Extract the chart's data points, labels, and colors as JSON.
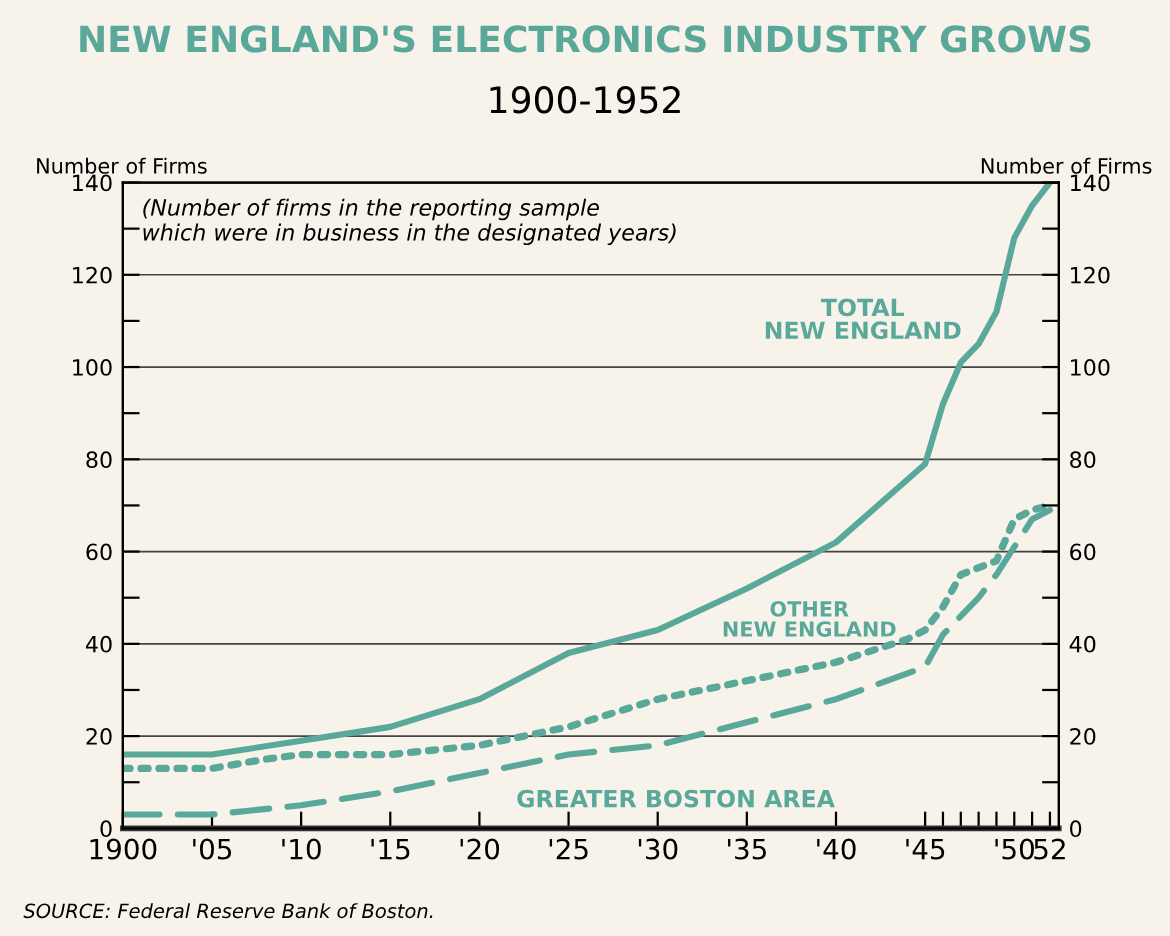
{
  "chart_data": {
    "type": "line",
    "title": "NEW ENGLAND'S ELECTRONICS INDUSTRY GROWS",
    "subtitle": "1900-1952",
    "ylabel": "Number of Firms",
    "y2label": "Number of Firms",
    "annotations": [
      "(Number of firms in the reporting sample\nwhich were in business in the designated years)",
      "SOURCE: Federal Reserve Bank of Boston."
    ],
    "xlim": [
      1900,
      1952.5
    ],
    "xticks": [
      {
        "value": 1900,
        "label": "1900"
      },
      {
        "value": 1905,
        "label": "'05"
      },
      {
        "value": 1910,
        "label": "'10"
      },
      {
        "value": 1915,
        "label": "'15"
      },
      {
        "value": 1920,
        "label": "'20"
      },
      {
        "value": 1925,
        "label": "'25"
      },
      {
        "value": 1930,
        "label": "'30"
      },
      {
        "value": 1935,
        "label": "'35"
      },
      {
        "value": 1940,
        "label": "'40"
      },
      {
        "value": 1945,
        "label": "'45"
      },
      {
        "value": 1946,
        "label": null
      },
      {
        "value": 1947,
        "label": null
      },
      {
        "value": 1948,
        "label": null
      },
      {
        "value": 1949,
        "label": null
      },
      {
        "value": 1950,
        "label": "'50"
      },
      {
        "value": 1951,
        "label": null
      },
      {
        "value": 1952,
        "label": "52"
      }
    ],
    "ylim": [
      0,
      140
    ],
    "y2lim": [
      0,
      140
    ],
    "yticks": [
      0,
      {
        "value": 10,
        "label": null
      },
      20,
      {
        "value": 30,
        "label": null
      },
      40,
      {
        "value": 50,
        "label": null
      },
      60,
      {
        "value": 70,
        "label": null
      },
      80,
      {
        "value": 90,
        "label": null
      },
      100,
      {
        "value": 110,
        "label": null
      },
      120,
      {
        "value": 130,
        "label": null
      },
      140
    ],
    "y2ticks": [
      0,
      {
        "value": 10,
        "label": null
      },
      20,
      {
        "value": 30,
        "label": null
      },
      40,
      {
        "value": 50,
        "label": null
      },
      60,
      {
        "value": 70,
        "label": null
      },
      80,
      {
        "value": 90,
        "label": null
      },
      100,
      {
        "value": 110,
        "label": null
      },
      120,
      {
        "value": 130,
        "label": null
      },
      140
    ],
    "grid": "y",
    "series": [
      {
        "name": "TOTAL NEW ENGLAND",
        "color": "#5aa89a",
        "line_style": "solid",
        "x": [
          1900,
          1905,
          1910,
          1915,
          1920,
          1925,
          1930,
          1935,
          1940,
          1945,
          1946,
          1947,
          1948,
          1949,
          1950,
          1951,
          1952
        ],
        "values": [
          16,
          16,
          19,
          22,
          28,
          38,
          43,
          52,
          62,
          79,
          92,
          101,
          105,
          112,
          128,
          135,
          140
        ]
      },
      {
        "name": "OTHER NEW ENGLAND",
        "color": "#5aa89a",
        "line_style": "dotted",
        "x": [
          1900,
          1905,
          1908,
          1910,
          1915,
          1920,
          1925,
          1930,
          1935,
          1940,
          1944,
          1945,
          1946,
          1947,
          1949,
          1950,
          1951,
          1952
        ],
        "values": [
          13,
          13,
          15,
          16,
          16,
          18,
          22,
          28,
          32,
          36,
          41,
          43,
          48,
          55,
          58,
          67,
          69,
          70
        ]
      },
      {
        "name": "GREATER BOSTON AREA",
        "color": "#5aa89a",
        "line_style": "dashed",
        "x": [
          1900,
          1905,
          1910,
          1915,
          1920,
          1925,
          1930,
          1935,
          1940,
          1945,
          1946,
          1947,
          1948,
          1949,
          1950,
          1951,
          1952
        ],
        "values": [
          3,
          3,
          5,
          8,
          12,
          16,
          18,
          23,
          28,
          35,
          42,
          46,
          50,
          55,
          61,
          67,
          69
        ]
      }
    ]
  }
}
